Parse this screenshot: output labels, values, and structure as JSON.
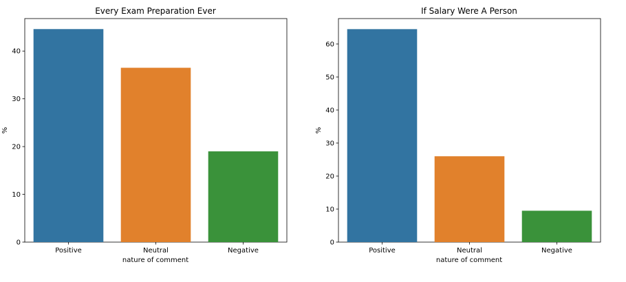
{
  "chart_data": [
    {
      "type": "bar",
      "title": "Every Exam Preparation Ever",
      "xlabel": "nature of comment",
      "ylabel": "%",
      "categories": [
        "Positive",
        "Neutral",
        "Negative"
      ],
      "values": [
        44.6,
        36.5,
        19.0
      ],
      "colors": [
        "#3274a1",
        "#e1812c",
        "#3a923a"
      ],
      "ylim": [
        0,
        46.8
      ],
      "yticks": [
        0,
        10,
        20,
        30,
        40
      ],
      "grid": false,
      "legend": "none"
    },
    {
      "type": "bar",
      "title": "If Salary Were A Person",
      "xlabel": "nature of comment",
      "ylabel": "%",
      "categories": [
        "Positive",
        "Neutral",
        "Negative"
      ],
      "values": [
        64.5,
        26.0,
        9.5
      ],
      "colors": [
        "#3274a1",
        "#e1812c",
        "#3a923a"
      ],
      "ylim": [
        0,
        67.7
      ],
      "yticks": [
        0,
        10,
        20,
        30,
        40,
        50,
        60
      ],
      "grid": false,
      "legend": "none"
    }
  ]
}
